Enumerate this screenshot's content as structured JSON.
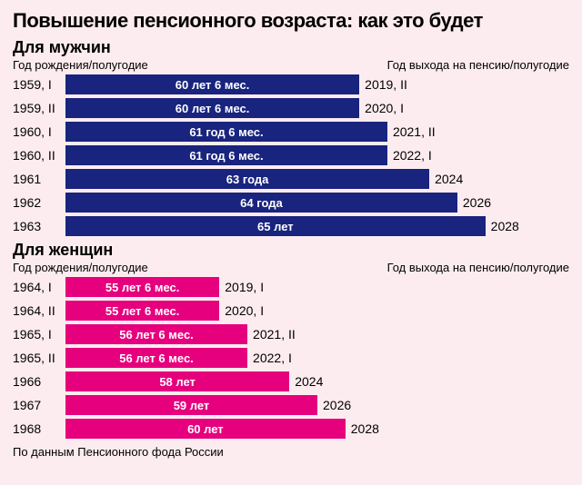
{
  "background_color": "#fdecef",
  "text_color": "#000000",
  "title": "Повышение пенсионного возраста: как это будет",
  "title_fontsize": 22,
  "section_title_fontsize": 18,
  "header_fontsize": 13,
  "row_label_fontsize": 14,
  "bar_label_fontsize": 13,
  "col_header_left": "Год рождения/полугодие",
  "col_header_right": "Год выхода на пенсию/полугодие",
  "footer": "По данным Пенсионного фода России",
  "footer_fontsize": 13,
  "bar_max_value": 68,
  "bar_min_value": 50,
  "sections": [
    {
      "title": "Для мужчин",
      "bar_color": "#18247e",
      "rows": [
        {
          "left": "1959, I",
          "bar_label": "60 лет 6 мес.",
          "value": 60.5,
          "right": "2019, II"
        },
        {
          "left": "1959, II",
          "bar_label": "60 лет 6 мес.",
          "value": 60.5,
          "right": "2020, I"
        },
        {
          "left": "1960, I",
          "bar_label": "61 год 6 мес.",
          "value": 61.5,
          "right": "2021, II"
        },
        {
          "left": "1960, II",
          "bar_label": "61 год 6 мес.",
          "value": 61.5,
          "right": "2022, I"
        },
        {
          "left": "1961",
          "bar_label": "63 года",
          "value": 63,
          "right": "2024"
        },
        {
          "left": "1962",
          "bar_label": "64 года",
          "value": 64,
          "right": "2026"
        },
        {
          "left": "1963",
          "bar_label": "65 лет",
          "value": 65,
          "right": "2028"
        }
      ]
    },
    {
      "title": "Для женщин",
      "bar_color": "#e6007e",
      "rows": [
        {
          "left": "1964, I",
          "bar_label": "55 лет 6 мес.",
          "value": 55.5,
          "right": "2019, I"
        },
        {
          "left": "1964, II",
          "bar_label": "55 лет 6 мес.",
          "value": 55.5,
          "right": "2020, I"
        },
        {
          "left": "1965, I",
          "bar_label": "56 лет 6 мес.",
          "value": 56.5,
          "right": "2021, II"
        },
        {
          "left": "1965, II",
          "bar_label": "56 лет 6 мес.",
          "value": 56.5,
          "right": "2022, I"
        },
        {
          "left": "1966",
          "bar_label": "58 лет",
          "value": 58,
          "right": "2024"
        },
        {
          "left": "1967",
          "bar_label": "59 лет",
          "value": 59,
          "right": "2026"
        },
        {
          "left": "1968",
          "bar_label": "60 лет",
          "value": 60,
          "right": "2028"
        }
      ]
    }
  ]
}
